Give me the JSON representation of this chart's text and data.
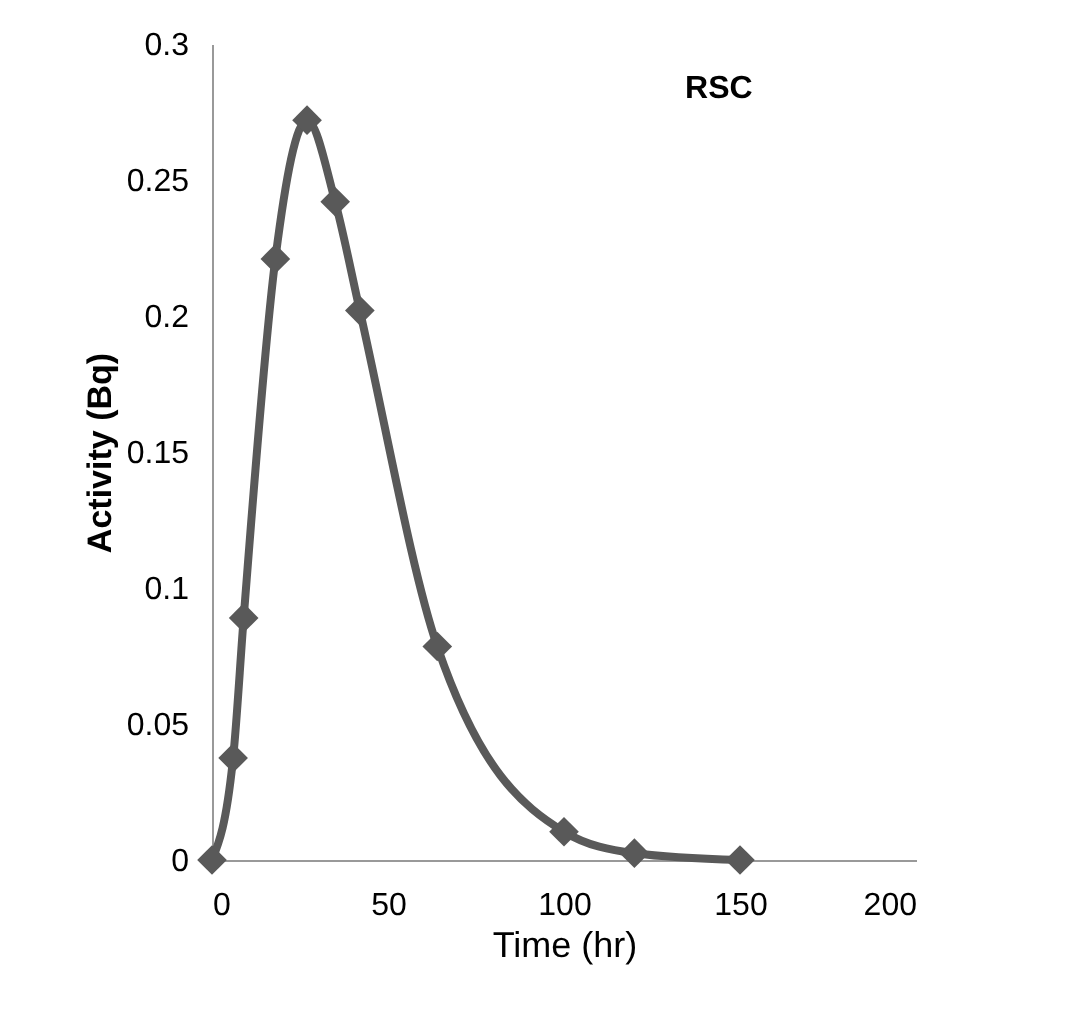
{
  "chart_data": {
    "type": "line",
    "title": "RSC",
    "xlabel": "Time (hr)",
    "ylabel": "Activity (Bq)",
    "x": [
      0,
      6,
      9,
      18,
      27,
      35,
      42,
      64,
      100,
      120,
      150
    ],
    "series": [
      {
        "color": "#595959",
        "values": [
          0,
          0.0375,
          0.089,
          0.221,
          0.272,
          0.242,
          0.202,
          0.0785,
          0.0104,
          0.0025,
          0
        ]
      }
    ],
    "xlim": [
      0,
      200
    ],
    "xticks": [
      0,
      50,
      100,
      150,
      200
    ],
    "ylim": [
      0,
      0.3
    ],
    "yticks": [
      0,
      0.05,
      0.1,
      0.15,
      0.2,
      0.25,
      0.3
    ],
    "grid": false,
    "marker": "diamond",
    "line_style": "solid"
  }
}
